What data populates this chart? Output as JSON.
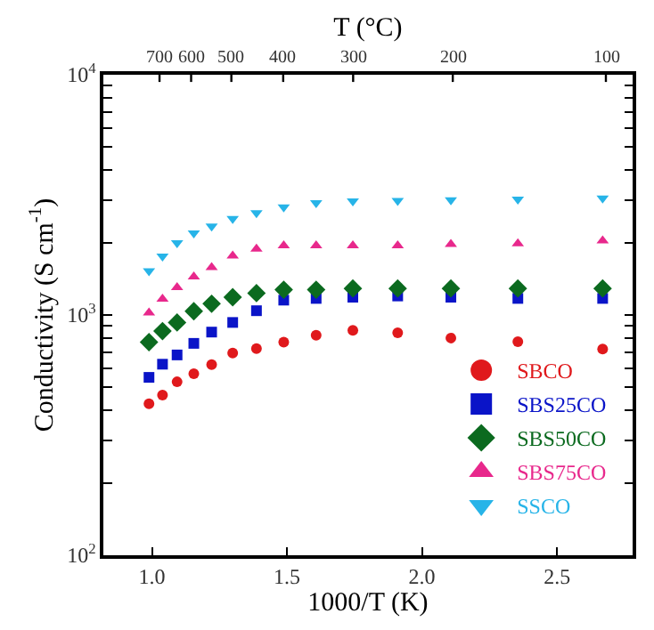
{
  "chart_data": {
    "type": "scatter",
    "xlabel": "1000/T (K)",
    "ylabel": "Conductivity (S cm$^{-1}$)",
    "x2label": "T (°C)",
    "x": [
      0.989,
      1.039,
      1.093,
      1.155,
      1.221,
      1.299,
      1.387,
      1.488,
      1.608,
      1.744,
      1.91,
      2.107,
      2.355,
      2.669
    ],
    "series": [
      {
        "name": "SBCO",
        "color": "#e0191c",
        "marker": "circle",
        "values": [
          427,
          464,
          527,
          570,
          621,
          694,
          725,
          771,
          824,
          863,
          843,
          802,
          774,
          721
        ]
      },
      {
        "name": "SBS25CO",
        "color": "#0a14c8",
        "marker": "square",
        "values": [
          550,
          624,
          682,
          762,
          849,
          931,
          1042,
          1153,
          1172,
          1186,
          1200,
          1186,
          1172,
          1172
        ]
      },
      {
        "name": "SBS50CO",
        "color": "#0b6a1f",
        "marker": "diamond",
        "values": [
          771,
          857,
          931,
          1037,
          1114,
          1186,
          1233,
          1274,
          1274,
          1290,
          1290,
          1290,
          1290,
          1290
        ]
      },
      {
        "name": "SBS75CO",
        "color": "#e8288c",
        "marker": "triangle",
        "values": [
          1021,
          1167,
          1303,
          1442,
          1578,
          1763,
          1884,
          1946,
          1946,
          1946,
          1946,
          1972,
          1982,
          2037
        ]
      },
      {
        "name": "SSCO",
        "color": "#27b4e8",
        "marker": "triangle-down",
        "values": [
          1524,
          1754,
          1994,
          2190,
          2340,
          2519,
          2663,
          2813,
          2929,
          2979,
          2995,
          3010,
          3027,
          3060
        ]
      }
    ],
    "log": "y",
    "xlim": [
      0.82,
      2.78
    ],
    "xticks": [
      {
        "value": 1.0,
        "label": "1.0"
      },
      1.5,
      {
        "value": 2.0,
        "label": "2.0"
      },
      2.5
    ],
    "annotations": [
      {
        "text": "700",
        "x": 1.028
      },
      {
        "text": "600",
        "x": 1.145
      },
      {
        "text": "500",
        "x": 1.294
      },
      {
        "text": "400",
        "x": 1.486
      },
      {
        "text": "300",
        "x": 1.745
      },
      {
        "text": "200",
        "x": 2.114
      },
      {
        "text": "100",
        "x": 2.681
      }
    ],
    "ylim": [
      100,
      10000
    ],
    "yticks": [
      {
        "value": 100,
        "label": "10$^{2}$"
      },
      {
        "value": 200,
        "label": null
      },
      {
        "value": 300,
        "label": null
      },
      {
        "value": 400,
        "label": null
      },
      {
        "value": 500,
        "label": null
      },
      {
        "value": 600,
        "label": null
      },
      {
        "value": 700,
        "label": null
      },
      {
        "value": 800,
        "label": null
      },
      {
        "value": 900,
        "label": null
      },
      {
        "value": 1000,
        "label": "10$^{3}$"
      },
      {
        "value": 2000,
        "label": null
      },
      {
        "value": 3000,
        "label": null
      },
      {
        "value": 4000,
        "label": null
      },
      {
        "value": 5000,
        "label": null
      },
      {
        "value": 6000,
        "label": null
      },
      {
        "value": 7000,
        "label": null
      },
      {
        "value": 8000,
        "label": null
      },
      {
        "value": 9000,
        "label": null
      },
      {
        "value": 10000,
        "label": "10$^{4}$"
      }
    ],
    "legend": "bottom right"
  }
}
